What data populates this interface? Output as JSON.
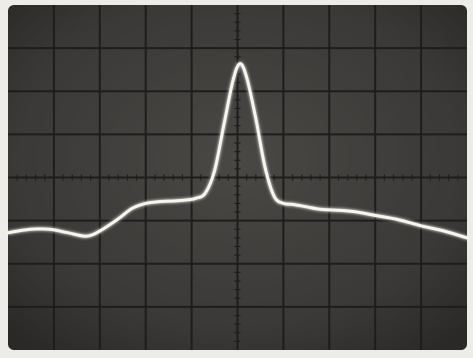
{
  "photo": {
    "subject": "oscilloscope-trace",
    "screen_color": "#3d3b39",
    "grid_color": "#1e1d1c",
    "border_color": "#ecece8",
    "trace_color": "#f6f6ee",
    "grid": {
      "divisions_horizontal": 10,
      "divisions_vertical": 8
    },
    "trace": {
      "shape": "single central peak on a low baseline with small shoulders",
      "points": [
        [
          0.0,
          0.66
        ],
        [
          0.05,
          0.65
        ],
        [
          0.09,
          0.65
        ],
        [
          0.13,
          0.66
        ],
        [
          0.17,
          0.67
        ],
        [
          0.2,
          0.655
        ],
        [
          0.24,
          0.62
        ],
        [
          0.27,
          0.59
        ],
        [
          0.3,
          0.575
        ],
        [
          0.33,
          0.57
        ],
        [
          0.36,
          0.568
        ],
        [
          0.39,
          0.565
        ],
        [
          0.41,
          0.56
        ],
        [
          0.43,
          0.545
        ],
        [
          0.45,
          0.48
        ],
        [
          0.47,
          0.35
        ],
        [
          0.49,
          0.22
        ],
        [
          0.505,
          0.17
        ],
        [
          0.52,
          0.21
        ],
        [
          0.54,
          0.33
        ],
        [
          0.56,
          0.47
        ],
        [
          0.58,
          0.555
        ],
        [
          0.6,
          0.575
        ],
        [
          0.62,
          0.578
        ],
        [
          0.65,
          0.585
        ],
        [
          0.68,
          0.592
        ],
        [
          0.72,
          0.595
        ],
        [
          0.76,
          0.6
        ],
        [
          0.8,
          0.61
        ],
        [
          0.85,
          0.622
        ],
        [
          0.9,
          0.64
        ],
        [
          0.95,
          0.655
        ],
        [
          1.0,
          0.675
        ]
      ]
    }
  }
}
